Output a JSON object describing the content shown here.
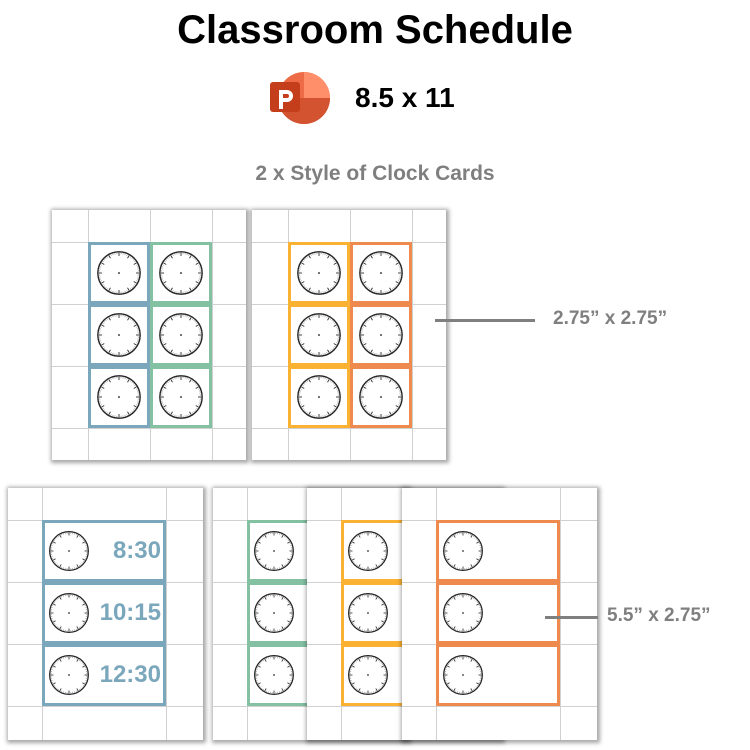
{
  "header": {
    "title": "Classroom Schedule",
    "size": "8.5 x 11",
    "app_icon": "powerpoint-icon"
  },
  "subtitle": "2 x Style of Clock Cards",
  "dimensions": {
    "square": "2.75” x 2.75”",
    "wide": "5.5” x 2.75”"
  },
  "colors": {
    "blue": "#7ba7bc",
    "green": "#84c1a3",
    "yellow": "#fbb232",
    "orange": "#ee8a4d",
    "ppt": "#d24726"
  },
  "square_pages": [
    {
      "columns": [
        "blue",
        "green"
      ]
    },
    {
      "columns": [
        "yellow",
        "orange"
      ]
    }
  ],
  "wide_pages": [
    {
      "color": "blue",
      "times": [
        "8:30",
        "10:15",
        "12:30"
      ]
    },
    {
      "color": "green",
      "times": [
        "",
        "",
        ""
      ]
    },
    {
      "color": "yellow",
      "times": [
        "",
        "",
        ""
      ]
    },
    {
      "color": "orange",
      "times": [
        "",
        "",
        ""
      ]
    }
  ]
}
